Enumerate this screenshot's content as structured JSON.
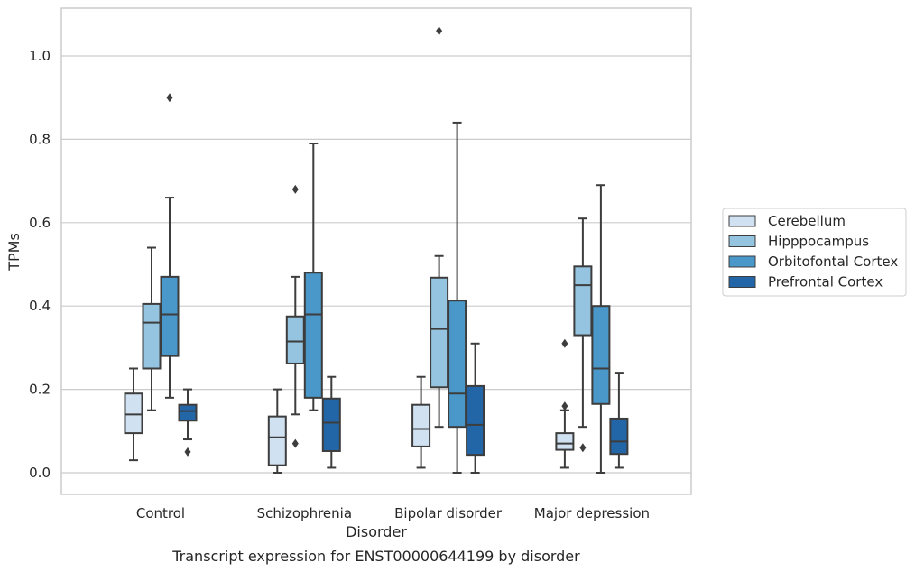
{
  "chart_data": {
    "type": "boxplot",
    "caption": "Transcript expression for ENST00000644199 by disorder",
    "xlabel": "Disorder",
    "ylabel": "TPMs",
    "ylim": [
      -0.05,
      1.12
    ],
    "yticks": [
      "0.0",
      "0.2",
      "0.4",
      "0.6",
      "0.8",
      "1.0"
    ],
    "grid": "horizontal",
    "legend_position": "right",
    "categories": [
      "Control",
      "Schizophrenia",
      "Bipolar disorder",
      "Major depression"
    ],
    "series": [
      {
        "name": "Cerebellum",
        "color": "#d0e1f2",
        "boxes": [
          {
            "whislo": 0.03,
            "q1": 0.095,
            "med": 0.14,
            "q3": 0.19,
            "whishi": 0.25,
            "fliers": []
          },
          {
            "whislo": 0.0,
            "q1": 0.018,
            "med": 0.085,
            "q3": 0.135,
            "whishi": 0.2,
            "fliers": []
          },
          {
            "whislo": 0.012,
            "q1": 0.063,
            "med": 0.105,
            "q3": 0.163,
            "whishi": 0.23,
            "fliers": []
          },
          {
            "whislo": 0.012,
            "q1": 0.055,
            "med": 0.07,
            "q3": 0.095,
            "whishi": 0.15,
            "fliers": [
              0.16,
              0.31
            ]
          }
        ]
      },
      {
        "name": "Hipppocampus",
        "color": "#94c4df",
        "boxes": [
          {
            "whislo": 0.15,
            "q1": 0.25,
            "med": 0.36,
            "q3": 0.405,
            "whishi": 0.54,
            "fliers": []
          },
          {
            "whislo": 0.14,
            "q1": 0.262,
            "med": 0.315,
            "q3": 0.375,
            "whishi": 0.47,
            "fliers": [
              0.07,
              0.68
            ]
          },
          {
            "whislo": 0.11,
            "q1": 0.205,
            "med": 0.345,
            "q3": 0.468,
            "whishi": 0.52,
            "fliers": [
              1.06
            ]
          },
          {
            "whislo": 0.11,
            "q1": 0.33,
            "med": 0.45,
            "q3": 0.495,
            "whishi": 0.61,
            "fliers": [
              0.06
            ]
          }
        ]
      },
      {
        "name": "Orbitofontal Cortex",
        "color": "#4a98c9",
        "boxes": [
          {
            "whislo": 0.18,
            "q1": 0.28,
            "med": 0.38,
            "q3": 0.47,
            "whishi": 0.66,
            "fliers": [
              0.9
            ]
          },
          {
            "whislo": 0.15,
            "q1": 0.18,
            "med": 0.38,
            "q3": 0.48,
            "whishi": 0.79,
            "fliers": []
          },
          {
            "whislo": 0.0,
            "q1": 0.11,
            "med": 0.19,
            "q3": 0.413,
            "whishi": 0.84,
            "fliers": []
          },
          {
            "whislo": 0.0,
            "q1": 0.165,
            "med": 0.25,
            "q3": 0.4,
            "whishi": 0.69,
            "fliers": []
          }
        ]
      },
      {
        "name": "Prefrontal Cortex",
        "color": "#2366a8",
        "boxes": [
          {
            "whislo": 0.08,
            "q1": 0.125,
            "med": 0.148,
            "q3": 0.163,
            "whishi": 0.2,
            "fliers": [
              0.05
            ]
          },
          {
            "whislo": 0.012,
            "q1": 0.052,
            "med": 0.12,
            "q3": 0.178,
            "whishi": 0.23,
            "fliers": []
          },
          {
            "whislo": 0.0,
            "q1": 0.043,
            "med": 0.115,
            "q3": 0.208,
            "whishi": 0.31,
            "fliers": []
          },
          {
            "whislo": 0.012,
            "q1": 0.045,
            "med": 0.075,
            "q3": 0.13,
            "whishi": 0.24,
            "fliers": []
          }
        ]
      }
    ]
  }
}
